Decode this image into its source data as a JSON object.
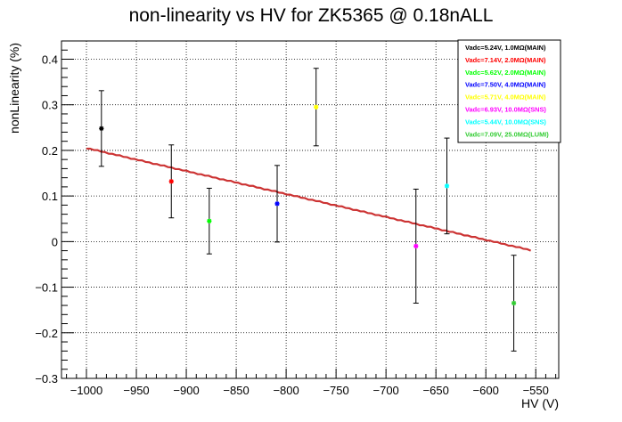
{
  "chart_data": {
    "type": "scatter",
    "title": "non-linearity vs HV for ZK5365 @ 0.18nALL",
    "xlabel": "HV (V)",
    "ylabel": "nonLinearity (%)",
    "xlim": [
      -1025,
      -527
    ],
    "ylim": [
      -0.3,
      0.44
    ],
    "x_ticks": [
      -1000,
      -950,
      -900,
      -850,
      -800,
      -750,
      -700,
      -650,
      -600,
      -550
    ],
    "x_tick_labels": [
      "−1000",
      "−950",
      "−900",
      "−850",
      "−800",
      "−750",
      "−700",
      "−650",
      "−600",
      "−550"
    ],
    "y_ticks": [
      -0.3,
      -0.2,
      -0.1,
      0,
      0.1,
      0.2,
      0.3,
      0.4
    ],
    "y_tick_labels": [
      "−0.3",
      "−0.2",
      "−0.1",
      "0",
      "0.1",
      "0.2",
      "0.3",
      "0.4"
    ],
    "grid": true,
    "legend_position": "top-right",
    "series": [
      {
        "name": "Vadc=5.24V, 1.0MΩ(MAIN)",
        "color": "#000000",
        "x": -985,
        "y": 0.248,
        "err": 0.083
      },
      {
        "name": "Vadc=7.14V, 2.0MΩ(MAIN)",
        "color": "#ff0000",
        "x": -915,
        "y": 0.132,
        "err": 0.08
      },
      {
        "name": "Vadc=5.62V, 2.0MΩ(MAIN)",
        "color": "#00ff00",
        "x": -877,
        "y": 0.045,
        "err": 0.072
      },
      {
        "name": "Vadc=7.50V, 4.0MΩ(MAIN)",
        "color": "#0000ff",
        "x": -809,
        "y": 0.083,
        "err": 0.084
      },
      {
        "name": "Vadc=5.71V, 4.0MΩ(MAIN)",
        "color": "#ffff00",
        "x": -770,
        "y": 0.295,
        "err": 0.085
      },
      {
        "name": "Vadc=6.93V, 10.0MΩ(SNS)",
        "color": "#ff00ff",
        "x": -670,
        "y": -0.01,
        "err": 0.125
      },
      {
        "name": "Vadc=5.44V, 10.0MΩ(SNS)",
        "color": "#00ffff",
        "x": -639,
        "y": 0.122,
        "err": 0.105
      },
      {
        "name": "Vadc=7.09V, 25.0MΩ(LUMI)",
        "color": "#33cc33",
        "x": -572,
        "y": -0.135,
        "err": 0.105
      }
    ],
    "fit_line": {
      "color": "#cc3333",
      "x": [
        -1000,
        -555
      ],
      "y": [
        0.205,
        -0.019
      ]
    }
  }
}
